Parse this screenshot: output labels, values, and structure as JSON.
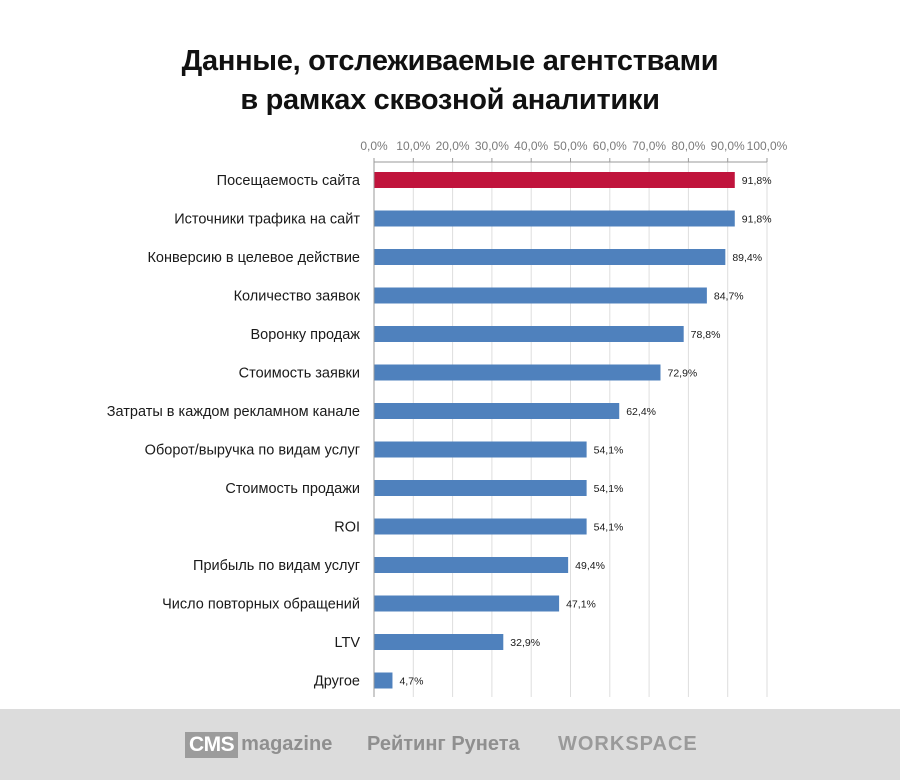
{
  "title": {
    "line1": "Данные, отслеживаемые агентствами",
    "line2": "в рамках сквозной аналитики"
  },
  "chart_data": {
    "type": "bar",
    "orientation": "horizontal",
    "title": "Данные, отслеживаемые агентствами в рамках сквозной аналитики",
    "xlim": [
      0,
      100
    ],
    "x_tick_labels": [
      "0,0%",
      "10,0%",
      "20,0%",
      "30,0%",
      "40,0%",
      "50,0%",
      "60,0%",
      "70,0%",
      "80,0%",
      "90,0%",
      "100,0%"
    ],
    "x_ticks": [
      0,
      10,
      20,
      30,
      40,
      50,
      60,
      70,
      80,
      90,
      100
    ],
    "x_axis_position": "top",
    "grid": true,
    "categories": [
      "Посещаемость сайта",
      "Источники трафика на сайт",
      "Конверсию в целевое действие",
      "Количество заявок",
      "Воронку продаж",
      "Стоимость заявки",
      "Затраты в каждом рекламном канале",
      "Оборот/выручка по видам услуг",
      "Стоимость продажи",
      "ROI",
      "Прибыль по видам услуг",
      "Число повторных обращений",
      "LTV",
      "Другое"
    ],
    "values": [
      91.8,
      91.8,
      89.4,
      84.7,
      78.8,
      72.9,
      62.4,
      54.1,
      54.1,
      54.1,
      49.4,
      47.1,
      32.9,
      4.7
    ],
    "value_labels": [
      "91,8%",
      "91,8%",
      "89,4%",
      "84,7%",
      "78,8%",
      "72,9%",
      "62,4%",
      "54,1%",
      "54,1%",
      "54,1%",
      "49,4%",
      "47,1%",
      "32,9%",
      "4,7%"
    ],
    "colors": [
      "#c0143c",
      "#4f81bd",
      "#4f81bd",
      "#4f81bd",
      "#4f81bd",
      "#4f81bd",
      "#4f81bd",
      "#4f81bd",
      "#4f81bd",
      "#4f81bd",
      "#4f81bd",
      "#4f81bd",
      "#4f81bd",
      "#4f81bd"
    ],
    "highlight_color": "#c0143c",
    "bar_color": "#4f81bd"
  },
  "footer": {
    "logo_cms_box": "CMS",
    "logo_cms_rest": "magazine",
    "logo_rating": "Рейтинг Рунета",
    "logo_workspace": "WORKSPACE"
  }
}
